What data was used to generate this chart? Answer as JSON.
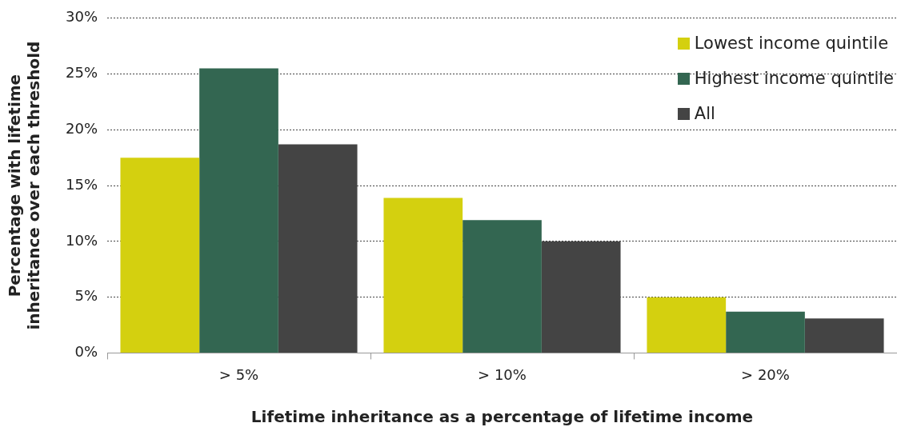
{
  "chart_data": {
    "type": "bar",
    "xlabel": "Lifetime inheritance as a percentage of lifetime income",
    "ylabel": "Percentage with lifetime inheritance over each threshold",
    "categories": [
      "> 5%",
      "> 10%",
      "> 20%"
    ],
    "series": [
      {
        "name": "Lowest income quintile",
        "color": "#d4d00f",
        "values": [
          17.5,
          13.9,
          5.0
        ]
      },
      {
        "name": "Highest income quintile",
        "color": "#336651",
        "values": [
          25.5,
          11.9,
          3.7
        ]
      },
      {
        "name": "All",
        "color": "#444444",
        "values": [
          18.7,
          10.0,
          3.1
        ]
      }
    ],
    "ylim": [
      0,
      30
    ],
    "yticks": [
      {
        "value": 0,
        "label": "0%"
      },
      {
        "value": 5,
        "label": "5%"
      },
      {
        "value": 10,
        "label": "10%"
      },
      {
        "value": 15,
        "label": "15%"
      },
      {
        "value": 20,
        "label": "20%"
      },
      {
        "value": 25,
        "label": "25%"
      },
      {
        "value": 30,
        "label": "30%"
      }
    ],
    "grid": "y",
    "legend": "top right"
  }
}
